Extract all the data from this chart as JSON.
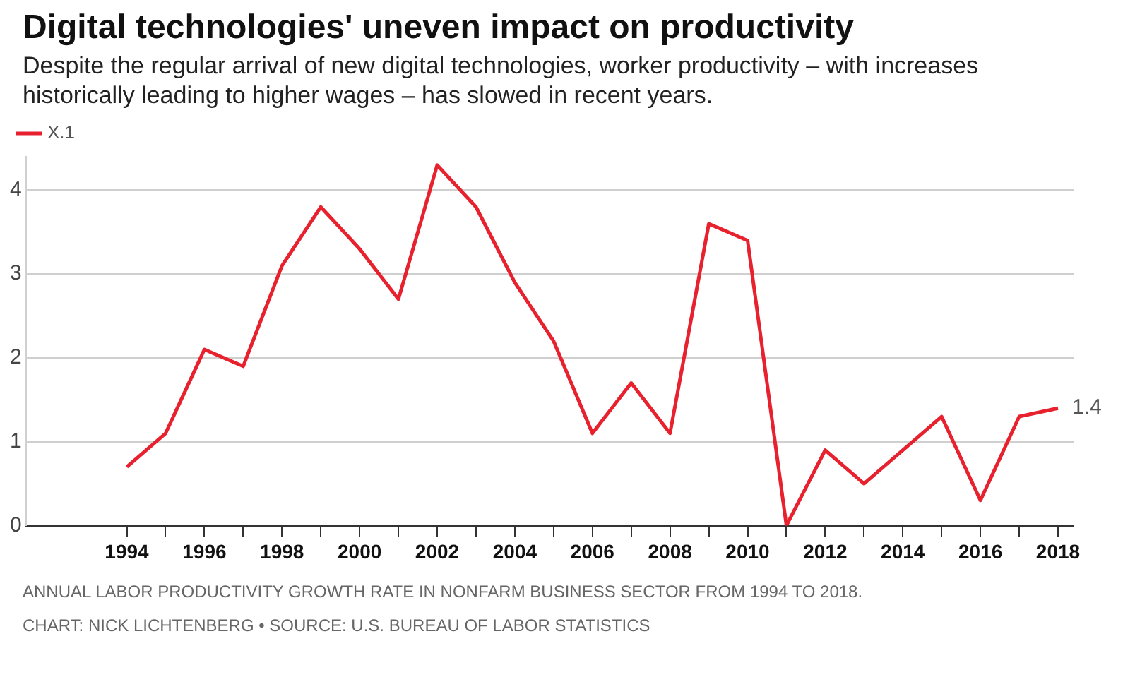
{
  "chart_data": {
    "type": "line",
    "title": "Digital technologies' uneven impact on productivity",
    "subtitle": "Despite the regular arrival of new digital technologies, worker productivity – with increases historically leading to higher wages – has slowed in recent years.",
    "x": [
      1994,
      1995,
      1996,
      1997,
      1998,
      1999,
      2000,
      2001,
      2002,
      2003,
      2004,
      2005,
      2006,
      2007,
      2008,
      2009,
      2010,
      2011,
      2012,
      2013,
      2014,
      2015,
      2016,
      2017,
      2018
    ],
    "series": [
      {
        "name": "X.1",
        "color": "#e8212e",
        "values": [
          0.7,
          1.1,
          2.1,
          1.9,
          3.1,
          3.8,
          3.3,
          2.7,
          4.3,
          3.8,
          2.9,
          2.2,
          1.1,
          1.7,
          1.1,
          3.6,
          3.4,
          0.0,
          0.9,
          0.5,
          0.9,
          1.3,
          0.3,
          1.3,
          1.4
        ],
        "value_labels": [
          null,
          null,
          null,
          null,
          null,
          null,
          null,
          null,
          null,
          null,
          null,
          null,
          null,
          null,
          null,
          null,
          null,
          null,
          null,
          null,
          null,
          null,
          null,
          null,
          "1.4"
        ]
      }
    ],
    "xlim": [
      1991.4,
      2018.4
    ],
    "xticks": [
      1994,
      {
        "value": 1995,
        "label": null
      },
      1996,
      {
        "value": 1997,
        "label": null
      },
      1998,
      {
        "value": 1999,
        "label": null
      },
      2000,
      {
        "value": 2001,
        "label": null
      },
      2002,
      {
        "value": 2003,
        "label": null
      },
      2004,
      {
        "value": 2005,
        "label": null
      },
      2006,
      {
        "value": 2007,
        "label": null
      },
      2008,
      {
        "value": 2009,
        "label": null
      },
      2010,
      {
        "value": 2011,
        "label": null
      },
      2012,
      {
        "value": 2013,
        "label": null
      },
      2014,
      {
        "value": 2015,
        "label": null
      },
      2016,
      {
        "value": 2017,
        "label": null
      },
      2018
    ],
    "ylim": [
      0,
      4.4
    ],
    "yticks": [
      0,
      1,
      2,
      3,
      4
    ],
    "grid": "y",
    "legend": "top left",
    "marker": "none",
    "line_style": "solid",
    "annotations": [
      "ANNUAL LABOR PRODUCTIVITY GROWTH RATE IN NONFARM BUSINESS SECTOR FROM 1994 TO 2018.",
      "CHART: NICK LICHTENBERG • SOURCE: U.S. BUREAU OF LABOR STATISTICS"
    ]
  }
}
